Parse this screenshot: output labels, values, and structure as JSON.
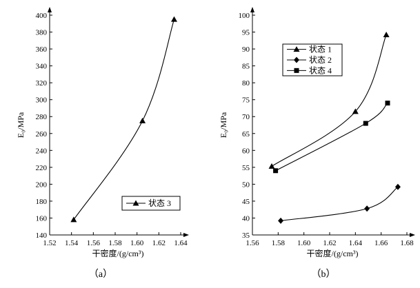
{
  "chart_data": [
    {
      "type": "line",
      "caption": "（a）",
      "xlabel": "干密度/(g/cm³)",
      "ylabel": "E₀/MPa",
      "xlim": [
        1.52,
        1.64
      ],
      "ylim": [
        140,
        400
      ],
      "xticks": [
        1.52,
        1.54,
        1.56,
        1.58,
        1.6,
        1.62,
        1.64
      ],
      "xtick_labels": [
        "1.52",
        "1.54",
        "1.56",
        "1.58",
        "1.60",
        "1.62",
        "1.64"
      ],
      "yticks": [
        140,
        160,
        180,
        200,
        220,
        240,
        260,
        280,
        300,
        320,
        340,
        360,
        380,
        400
      ],
      "ytick_labels": [
        "140",
        "160",
        "180",
        "200",
        "220",
        "240",
        "260",
        "280",
        "300",
        "320",
        "340",
        "360",
        "380",
        "400"
      ],
      "legend_position": "bottom-right",
      "series": [
        {
          "name": "状态 3",
          "marker": "triangle",
          "x": [
            1.542,
            1.605,
            1.634
          ],
          "y": [
            158,
            275,
            395
          ]
        }
      ]
    },
    {
      "type": "line",
      "caption": "（b）",
      "xlabel": "干密度/(g/cm³)",
      "ylabel": "E₀/MPa",
      "xlim": [
        1.56,
        1.68
      ],
      "ylim": [
        35,
        100
      ],
      "xticks": [
        1.56,
        1.58,
        1.6,
        1.62,
        1.64,
        1.66,
        1.68
      ],
      "xtick_labels": [
        "1.56",
        "1.58",
        "1.60",
        "1.62",
        "1.64",
        "1.66",
        "1.68"
      ],
      "yticks": [
        35,
        40,
        45,
        50,
        55,
        60,
        65,
        70,
        75,
        80,
        85,
        90,
        95,
        100
      ],
      "ytick_labels": [
        "35",
        "40",
        "45",
        "50",
        "55",
        "60",
        "65",
        "70",
        "75",
        "80",
        "85",
        "90",
        "95",
        "100"
      ],
      "legend_position": "top-left",
      "series": [
        {
          "name": "状态 1",
          "marker": "triangle",
          "x": [
            1.575,
            1.64,
            1.664
          ],
          "y": [
            55.3,
            71.5,
            94.2
          ]
        },
        {
          "name": "状态 2",
          "marker": "diamond",
          "x": [
            1.582,
            1.649,
            1.673
          ],
          "y": [
            39.2,
            42.8,
            49.2
          ]
        },
        {
          "name": "状态 4",
          "marker": "square",
          "x": [
            1.578,
            1.648,
            1.665
          ],
          "y": [
            54.0,
            68.0,
            74.0
          ]
        }
      ]
    }
  ]
}
